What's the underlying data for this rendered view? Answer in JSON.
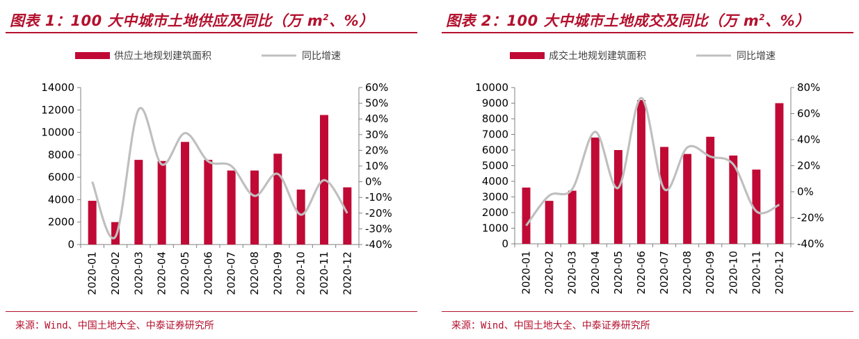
{
  "colors": {
    "accent": "#b3102d",
    "bar": "#c00a35",
    "line": "#bfbfbf",
    "axis": "#7f7f7f"
  },
  "chart_data": [
    {
      "type": "bar",
      "title": "图表 1：100 大中城市土地供应及同比（万 m²、%）",
      "title_main": "图表 1：100 大中城市土地供应及同比（万 m",
      "title_sup": "2",
      "title_tail": "、%）",
      "categories": [
        "2020-01",
        "2020-02",
        "2020-03",
        "2020-04",
        "2020-05",
        "2020-06",
        "2020-07",
        "2020-08",
        "2020-09",
        "2020-10",
        "2020-11",
        "2020-12"
      ],
      "series": [
        {
          "name": "供应土地规划建筑面积",
          "type": "bar",
          "axis": "left",
          "values": [
            3900,
            2000,
            7550,
            7450,
            9150,
            7550,
            6600,
            6600,
            8100,
            4900,
            11550,
            5100
          ]
        },
        {
          "name": "同比增速",
          "type": "line",
          "axis": "right",
          "values": [
            0,
            -35,
            46,
            11,
            31,
            13,
            10,
            -9,
            5,
            -21,
            1,
            -20
          ]
        }
      ],
      "ylim_left": [
        0,
        14000
      ],
      "yticks_left": [
        0,
        2000,
        4000,
        6000,
        8000,
        10000,
        12000,
        14000
      ],
      "ylim_right": [
        -40,
        60
      ],
      "yticks_right": [
        "-40%",
        "-30%",
        "-20%",
        "-10%",
        "0%",
        "10%",
        "20%",
        "30%",
        "40%",
        "50%",
        "60%"
      ],
      "legend_position": "top-center",
      "source": "来源：Wind、中国土地大全、中泰证券研究所"
    },
    {
      "type": "bar",
      "title": "图表 2：100 大中城市土地成交及同比（万 m²、%）",
      "title_main": "图表 2：100 大中城市土地成交及同比（万 m",
      "title_sup": "2",
      "title_tail": "、%）",
      "categories": [
        "2020-01",
        "2020-02",
        "2020-03",
        "2020-04",
        "2020-05",
        "2020-06",
        "2020-07",
        "2020-08",
        "2020-09",
        "2020-10",
        "2020-11",
        "2020-12"
      ],
      "series": [
        {
          "name": "成交土地规划建筑面积",
          "type": "bar",
          "axis": "left",
          "values": [
            3600,
            2750,
            3400,
            6800,
            6000,
            9200,
            6200,
            5750,
            6850,
            5650,
            4750,
            9000
          ]
        },
        {
          "name": "同比增速",
          "type": "line",
          "axis": "right",
          "values": [
            -26,
            -3,
            2,
            46,
            3,
            72,
            2,
            34,
            27,
            21,
            -15,
            -10
          ]
        }
      ],
      "ylim_left": [
        0,
        10000
      ],
      "yticks_left": [
        0,
        1000,
        2000,
        3000,
        4000,
        5000,
        6000,
        7000,
        8000,
        9000,
        10000
      ],
      "ylim_right": [
        -40,
        80
      ],
      "yticks_right": [
        "-40%",
        "-20%",
        "0%",
        "20%",
        "40%",
        "60%",
        "80%"
      ],
      "legend_position": "top-center",
      "source": "来源：Wind、中国土地大全、中泰证券研究所"
    }
  ]
}
